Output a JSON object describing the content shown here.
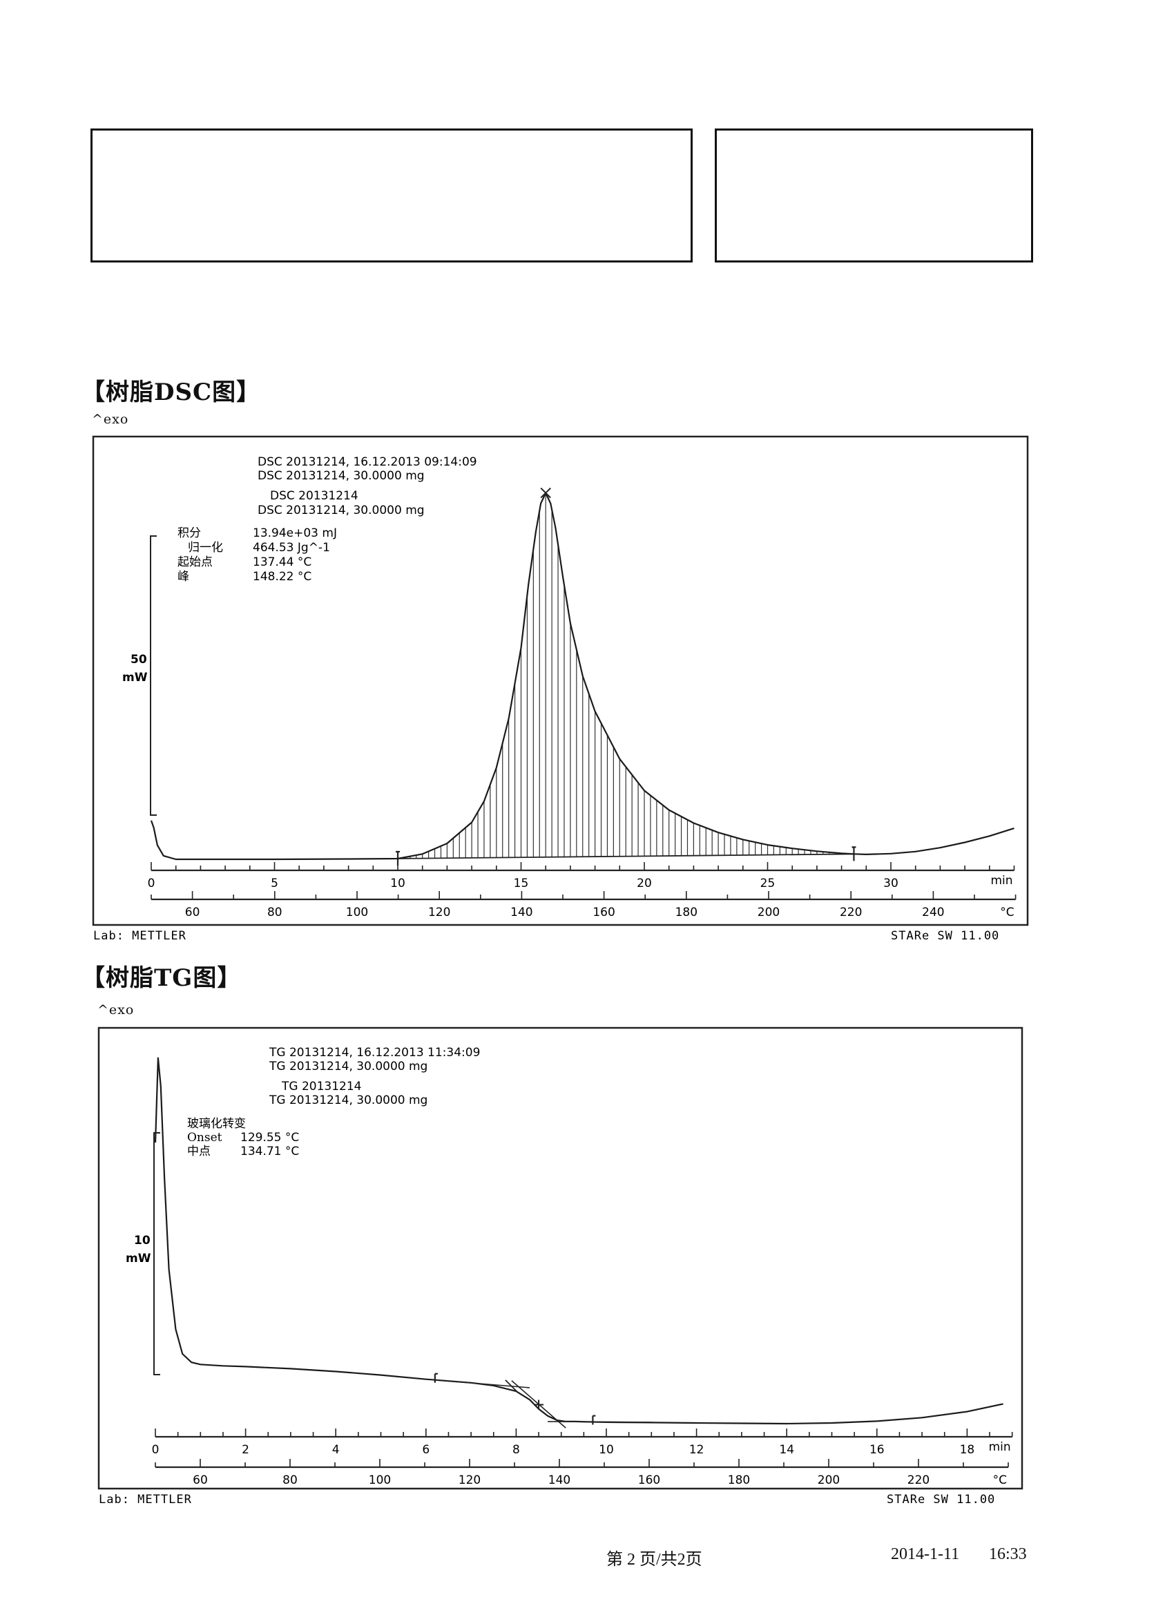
{
  "page": {
    "footer_page": "第 2 页/共2页",
    "footer_date": "2014-1-11",
    "footer_time": "16:33"
  },
  "chart_data": [
    {
      "type": "line",
      "section_title": "【树脂DSC图】",
      "exo_label": "^exo",
      "header_lines": [
        "DSC 20131214, 16.12.2013 09:14:09",
        "DSC 20131214, 30.0000 mg",
        "DSC 20131214",
        "DSC 20131214, 30.0000 mg"
      ],
      "annotations": [
        {
          "label": "积分",
          "value": "13.94e+03 mJ"
        },
        {
          "label": "归一化",
          "value": "464.53 Jg^-1"
        },
        {
          "label": "起始点",
          "value": "137.44 °C"
        },
        {
          "label": "峰",
          "value": "148.22 °C"
        }
      ],
      "scale_bar": {
        "value": "50",
        "unit": "mW"
      },
      "x_time": {
        "label": "min",
        "ticks": [
          0,
          5,
          10,
          15,
          20,
          25,
          30
        ],
        "range": [
          0,
          35
        ]
      },
      "x_temp": {
        "label": "°C",
        "ticks": [
          60,
          80,
          100,
          120,
          140,
          160,
          180,
          200,
          220,
          240
        ],
        "range": [
          50,
          260
        ]
      },
      "y_unit": "mW",
      "series": [
        {
          "x": [
            0,
            0.1,
            0.25,
            0.5,
            1,
            2,
            5,
            8,
            10,
            11,
            12,
            13,
            13.5,
            14,
            14.5,
            15,
            15.3,
            15.6,
            15.8,
            16.0,
            16.2,
            16.4,
            16.7,
            17,
            17.5,
            18,
            19,
            20,
            21,
            22,
            23,
            24,
            25,
            26,
            27,
            28,
            28.5,
            29,
            30,
            31,
            32,
            33,
            34,
            35
          ],
          "y": [
            11.0,
            9.0,
            4.0,
            1.0,
            0.0,
            0.0,
            0.0,
            0.1,
            0.2,
            1.5,
            4.5,
            10.5,
            16.5,
            26.0,
            40.0,
            60.0,
            78.0,
            93.0,
            101.0,
            104.0,
            101.0,
            94.0,
            80.0,
            67.0,
            52.0,
            42.0,
            28.5,
            19.5,
            14.0,
            10.3,
            7.6,
            5.6,
            4.1,
            3.1,
            2.3,
            1.7,
            1.5,
            1.4,
            1.6,
            2.2,
            3.3,
            4.8,
            6.6,
            8.8
          ]
        }
      ],
      "baseline_segment": {
        "x": [
          10,
          28.5
        ],
        "y": [
          0.2,
          1.5
        ]
      },
      "peak": {
        "x": 16.0,
        "y": 104.0
      },
      "integration_limits": [
        10,
        28.5
      ],
      "lab": "Lab: METTLER",
      "software": "STARe SW 11.00"
    },
    {
      "type": "line",
      "section_title": "【树脂TG图】",
      "exo_label": "^exo",
      "header_lines": [
        "TG 20131214, 16.12.2013 11:34:09",
        "TG 20131214, 30.0000 mg",
        "TG 20131214",
        "TG 20131214, 30.0000 mg"
      ],
      "annotations": [
        {
          "label": "玻璃化转变",
          "value": ""
        },
        {
          "label": "Onset",
          "value": "129.55 °C"
        },
        {
          "label": "中点",
          "value": "134.71 °C"
        }
      ],
      "scale_bar": {
        "value": "10",
        "unit": "mW"
      },
      "x_time": {
        "label": "min",
        "ticks": [
          0,
          2,
          4,
          6,
          8,
          10,
          12,
          14,
          16,
          18
        ],
        "range": [
          0,
          19
        ]
      },
      "x_temp": {
        "label": "°C",
        "ticks": [
          60,
          80,
          100,
          120,
          140,
          160,
          180,
          200,
          220
        ],
        "range": [
          50,
          240
        ]
      },
      "y_unit": "mW",
      "series": [
        {
          "x": [
            0,
            0.06,
            0.12,
            0.2,
            0.3,
            0.45,
            0.6,
            0.8,
            1.0,
            1.5,
            2,
            3,
            4,
            5,
            6,
            6.2,
            7,
            7.5,
            8,
            8.3,
            8.5,
            8.7,
            8.9,
            9.1,
            9.3,
            9.6,
            10,
            11,
            12,
            13,
            14,
            15,
            16,
            17,
            18,
            18.8
          ],
          "y": [
            40.0,
            52.0,
            48.0,
            35.0,
            22.0,
            13.5,
            10.0,
            8.8,
            8.5,
            8.3,
            8.2,
            7.9,
            7.5,
            7.0,
            6.4,
            6.3,
            5.9,
            5.5,
            4.7,
            3.5,
            2.2,
            1.2,
            0.6,
            0.4,
            0.4,
            0.35,
            0.3,
            0.25,
            0.2,
            0.15,
            0.1,
            0.2,
            0.45,
            0.95,
            1.8,
            2.9
          ]
        }
      ],
      "tangent_lines": [
        {
          "x": [
            6.2,
            8.3
          ],
          "y": [
            6.3,
            5.2
          ]
        },
        {
          "x": [
            7.9,
            9.1
          ],
          "y": [
            6.2,
            -0.5
          ]
        },
        {
          "x": [
            8.7,
            11.0
          ],
          "y": [
            0.4,
            0.3
          ]
        }
      ],
      "onset_point": {
        "x": 7.9,
        "y": 5.4
      },
      "midpoint": {
        "x": 8.5,
        "y": 2.8
      },
      "marks_x": [
        6.2,
        9.7
      ],
      "lab": "Lab: METTLER",
      "software": "STARe SW 11.00"
    }
  ]
}
